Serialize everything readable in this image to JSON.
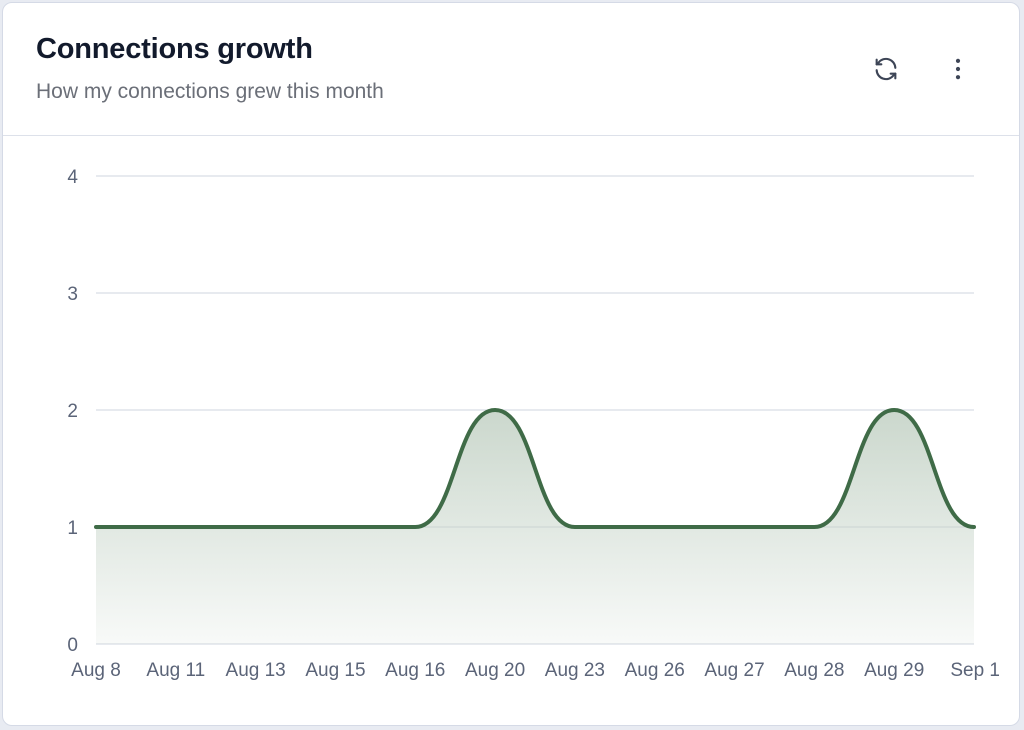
{
  "card": {
    "title": "Connections growth",
    "subtitle": "How my connections grew this month"
  },
  "actions": {
    "refresh_icon": "refresh-icon",
    "more_icon": "more-vertical-icon"
  },
  "colors": {
    "line": "#3f6b47",
    "area_top": "#c5d3c7",
    "grid": "#dfe3ea",
    "axis_text": "#5b6478"
  },
  "chart_data": {
    "type": "area",
    "categories": [
      "Aug 8",
      "Aug 11",
      "Aug 13",
      "Aug 15",
      "Aug 16",
      "Aug 20",
      "Aug 23",
      "Aug 26",
      "Aug 27",
      "Aug 28",
      "Aug 29",
      "Sep 1"
    ],
    "series": [
      {
        "values": [
          1,
          1,
          1,
          1,
          1,
          2,
          1,
          1,
          1,
          1,
          2,
          1
        ]
      }
    ],
    "yticks": [
      0,
      1,
      2,
      3,
      4
    ],
    "ylim": [
      0,
      4
    ],
    "grid": true,
    "legend": "none"
  }
}
